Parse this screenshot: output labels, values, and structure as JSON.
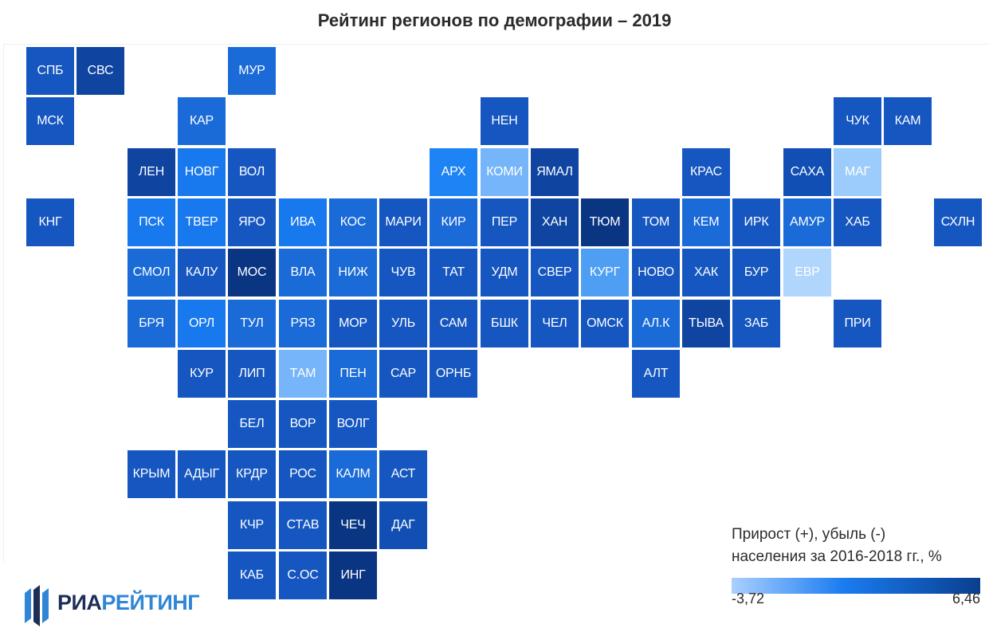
{
  "title": "Рейтинг регионов по демографии – 2019",
  "legend": {
    "line1": "Прирост (+), убыль (-)",
    "line2": "населения за 2016-2018 гг., %",
    "min": "-3,72",
    "max": "6,46",
    "min_value": -3.72,
    "max_value": 6.46,
    "colors": [
      "#aad0ff",
      "#1a7cf0",
      "#0a3f8f"
    ]
  },
  "logo": {
    "part1": "РИА",
    "part2": "РЕЙТИНГ"
  },
  "tile_colors": {
    "darkest": "#0a3582",
    "dark": "#0f45a0",
    "mid_dark": "#114fb4",
    "mid": "#1556c0",
    "mid_light": "#1a6ad8",
    "bright": "#1878ee",
    "brighter": "#1e84f5",
    "light": "#4e9ff4",
    "lighter": "#76b5fa",
    "lightest": "#9cccfc",
    "palest": "#b0d6fd"
  },
  "regions": [
    {
      "label": "СПБ",
      "row": 0,
      "col": 0,
      "shade": "mid"
    },
    {
      "label": "СВС",
      "row": 0,
      "col": 1,
      "shade": "dark"
    },
    {
      "label": "МУР",
      "row": 0,
      "col": 4,
      "shade": "mid_light"
    },
    {
      "label": "МСК",
      "row": 1,
      "col": 0,
      "shade": "mid"
    },
    {
      "label": "КАР",
      "row": 1,
      "col": 3,
      "shade": "mid_light"
    },
    {
      "label": "НЕН",
      "row": 1,
      "col": 9,
      "shade": "mid"
    },
    {
      "label": "ЧУК",
      "row": 1,
      "col": 16,
      "shade": "mid"
    },
    {
      "label": "КАМ",
      "row": 1,
      "col": 17,
      "shade": "mid"
    },
    {
      "label": "ЛЕН",
      "row": 2,
      "col": 2,
      "shade": "dark"
    },
    {
      "label": "НОВГ",
      "row": 2,
      "col": 3,
      "shade": "bright"
    },
    {
      "label": "ВОЛ",
      "row": 2,
      "col": 4,
      "shade": "mid"
    },
    {
      "label": "АРХ",
      "row": 2,
      "col": 8,
      "shade": "brighter"
    },
    {
      "label": "КОМИ",
      "row": 2,
      "col": 9,
      "shade": "lighter"
    },
    {
      "label": "ЯМАЛ",
      "row": 2,
      "col": 10,
      "shade": "dark"
    },
    {
      "label": "КРАС",
      "row": 2,
      "col": 13,
      "shade": "mid"
    },
    {
      "label": "САХА",
      "row": 2,
      "col": 15,
      "shade": "mid_dark"
    },
    {
      "label": "МАГ",
      "row": 2,
      "col": 16,
      "shade": "lightest"
    },
    {
      "label": "КНГ",
      "row": 3,
      "col": 0,
      "shade": "mid"
    },
    {
      "label": "ПСК",
      "row": 3,
      "col": 2,
      "shade": "bright"
    },
    {
      "label": "ТВЕР",
      "row": 3,
      "col": 3,
      "shade": "bright"
    },
    {
      "label": "ЯРО",
      "row": 3,
      "col": 4,
      "shade": "mid"
    },
    {
      "label": "ИВА",
      "row": 3,
      "col": 5,
      "shade": "bright"
    },
    {
      "label": "КОС",
      "row": 3,
      "col": 6,
      "shade": "mid_light"
    },
    {
      "label": "МАРИ",
      "row": 3,
      "col": 7,
      "shade": "mid"
    },
    {
      "label": "КИР",
      "row": 3,
      "col": 8,
      "shade": "mid_light"
    },
    {
      "label": "ПЕР",
      "row": 3,
      "col": 9,
      "shade": "mid"
    },
    {
      "label": "ХАН",
      "row": 3,
      "col": 10,
      "shade": "dark"
    },
    {
      "label": "ТЮМ",
      "row": 3,
      "col": 11,
      "shade": "darkest"
    },
    {
      "label": "ТОМ",
      "row": 3,
      "col": 12,
      "shade": "mid"
    },
    {
      "label": "КЕМ",
      "row": 3,
      "col": 13,
      "shade": "mid_light"
    },
    {
      "label": "ИРК",
      "row": 3,
      "col": 14,
      "shade": "mid"
    },
    {
      "label": "АМУР",
      "row": 3,
      "col": 15,
      "shade": "mid_light"
    },
    {
      "label": "ХАБ",
      "row": 3,
      "col": 16,
      "shade": "mid"
    },
    {
      "label": "СХЛН",
      "row": 3,
      "col": 18,
      "shade": "mid"
    },
    {
      "label": "СМОЛ",
      "row": 4,
      "col": 2,
      "shade": "mid_light"
    },
    {
      "label": "КАЛУ",
      "row": 4,
      "col": 3,
      "shade": "mid"
    },
    {
      "label": "МОС",
      "row": 4,
      "col": 4,
      "shade": "darkest"
    },
    {
      "label": "ВЛА",
      "row": 4,
      "col": 5,
      "shade": "mid_light"
    },
    {
      "label": "НИЖ",
      "row": 4,
      "col": 6,
      "shade": "mid_light"
    },
    {
      "label": "ЧУВ",
      "row": 4,
      "col": 7,
      "shade": "mid"
    },
    {
      "label": "ТАТ",
      "row": 4,
      "col": 8,
      "shade": "mid"
    },
    {
      "label": "УДМ",
      "row": 4,
      "col": 9,
      "shade": "mid"
    },
    {
      "label": "СВЕР",
      "row": 4,
      "col": 10,
      "shade": "mid"
    },
    {
      "label": "КУРГ",
      "row": 4,
      "col": 11,
      "shade": "light"
    },
    {
      "label": "НОВО",
      "row": 4,
      "col": 12,
      "shade": "mid"
    },
    {
      "label": "ХАК",
      "row": 4,
      "col": 13,
      "shade": "mid"
    },
    {
      "label": "БУР",
      "row": 4,
      "col": 14,
      "shade": "mid"
    },
    {
      "label": "ЕВР",
      "row": 4,
      "col": 15,
      "shade": "palest"
    },
    {
      "label": "БРЯ",
      "row": 5,
      "col": 2,
      "shade": "mid_light"
    },
    {
      "label": "ОРЛ",
      "row": 5,
      "col": 3,
      "shade": "bright"
    },
    {
      "label": "ТУЛ",
      "row": 5,
      "col": 4,
      "shade": "mid_light"
    },
    {
      "label": "РЯЗ",
      "row": 5,
      "col": 5,
      "shade": "mid_light"
    },
    {
      "label": "МОР",
      "row": 5,
      "col": 6,
      "shade": "mid"
    },
    {
      "label": "УЛЬ",
      "row": 5,
      "col": 7,
      "shade": "mid"
    },
    {
      "label": "САМ",
      "row": 5,
      "col": 8,
      "shade": "mid"
    },
    {
      "label": "БШК",
      "row": 5,
      "col": 9,
      "shade": "mid"
    },
    {
      "label": "ЧЕЛ",
      "row": 5,
      "col": 10,
      "shade": "mid"
    },
    {
      "label": "ОМСК",
      "row": 5,
      "col": 11,
      "shade": "mid"
    },
    {
      "label": "АЛ.К",
      "row": 5,
      "col": 12,
      "shade": "mid_light"
    },
    {
      "label": "ТЫВА",
      "row": 5,
      "col": 13,
      "shade": "dark"
    },
    {
      "label": "ЗАБ",
      "row": 5,
      "col": 14,
      "shade": "mid"
    },
    {
      "label": "ПРИ",
      "row": 5,
      "col": 16,
      "shade": "mid"
    },
    {
      "label": "КУР",
      "row": 6,
      "col": 3,
      "shade": "mid"
    },
    {
      "label": "ЛИП",
      "row": 6,
      "col": 4,
      "shade": "mid"
    },
    {
      "label": "ТАМ",
      "row": 6,
      "col": 5,
      "shade": "lighter"
    },
    {
      "label": "ПЕН",
      "row": 6,
      "col": 6,
      "shade": "mid_light"
    },
    {
      "label": "САР",
      "row": 6,
      "col": 7,
      "shade": "mid"
    },
    {
      "label": "ОРНБ",
      "row": 6,
      "col": 8,
      "shade": "mid"
    },
    {
      "label": "АЛТ",
      "row": 6,
      "col": 12,
      "shade": "mid"
    },
    {
      "label": "БЕЛ",
      "row": 7,
      "col": 4,
      "shade": "mid"
    },
    {
      "label": "ВОР",
      "row": 7,
      "col": 5,
      "shade": "mid"
    },
    {
      "label": "ВОЛГ",
      "row": 7,
      "col": 6,
      "shade": "mid"
    },
    {
      "label": "КРЫМ",
      "row": 8,
      "col": 2,
      "shade": "mid"
    },
    {
      "label": "АДЫГ",
      "row": 8,
      "col": 3,
      "shade": "mid"
    },
    {
      "label": "КРДР",
      "row": 8,
      "col": 4,
      "shade": "mid"
    },
    {
      "label": "РОС",
      "row": 8,
      "col": 5,
      "shade": "mid"
    },
    {
      "label": "КАЛМ",
      "row": 8,
      "col": 6,
      "shade": "mid_light"
    },
    {
      "label": "АСТ",
      "row": 8,
      "col": 7,
      "shade": "mid"
    },
    {
      "label": "КЧР",
      "row": 9,
      "col": 4,
      "shade": "mid"
    },
    {
      "label": "СТАВ",
      "row": 9,
      "col": 5,
      "shade": "mid"
    },
    {
      "label": "ЧЕЧ",
      "row": 9,
      "col": 6,
      "shade": "darkest"
    },
    {
      "label": "ДАГ",
      "row": 9,
      "col": 7,
      "shade": "mid_dark"
    },
    {
      "label": "КАБ",
      "row": 10,
      "col": 4,
      "shade": "mid"
    },
    {
      "label": "С.ОС",
      "row": 10,
      "col": 5,
      "shade": "mid"
    },
    {
      "label": "ИНГ",
      "row": 10,
      "col": 6,
      "shade": "darkest"
    }
  ]
}
